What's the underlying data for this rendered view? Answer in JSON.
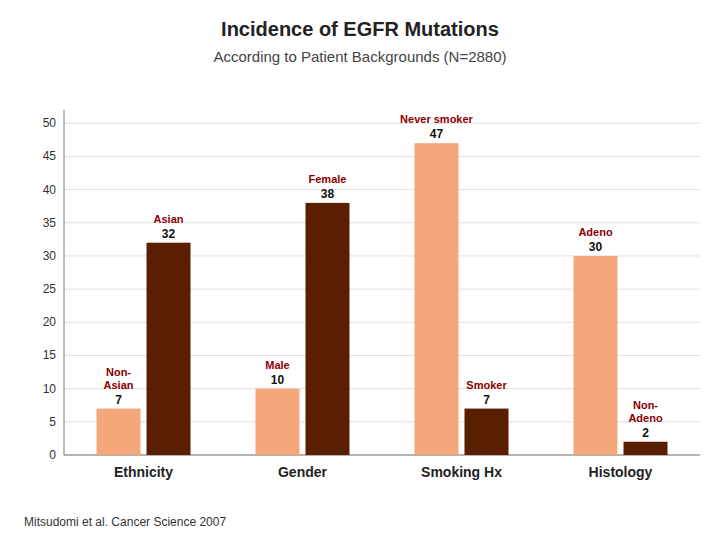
{
  "chart_data": {
    "type": "bar",
    "title": "Incidence of EGFR Mutations",
    "subtitle": "According to Patient Backgrounds (N=2880)",
    "categories": [
      "Ethnicity",
      "Gender",
      "Smoking Hx",
      "Histology"
    ],
    "series": [
      {
        "color": "#f4a87c",
        "values": [
          7,
          10,
          47,
          30
        ],
        "annotations": [
          [
            "Non-",
            "Asian"
          ],
          [
            "Male"
          ],
          [
            "Never smoker"
          ],
          [
            "Adeno"
          ]
        ]
      },
      {
        "color": "#5a1e00",
        "values": [
          32,
          38,
          7,
          2
        ],
        "annotations": [
          [
            "Asian"
          ],
          [
            "Female"
          ],
          [
            "Smoker"
          ],
          [
            "Non-",
            "Adeno"
          ]
        ]
      }
    ],
    "ylim": [
      0,
      52
    ],
    "yticks": [
      0,
      5,
      10,
      15,
      20,
      25,
      30,
      35,
      40,
      45,
      50
    ],
    "grid": true,
    "data_labels": true,
    "footnote": "Mitsudomi et al. Cancer Science 2007"
  }
}
